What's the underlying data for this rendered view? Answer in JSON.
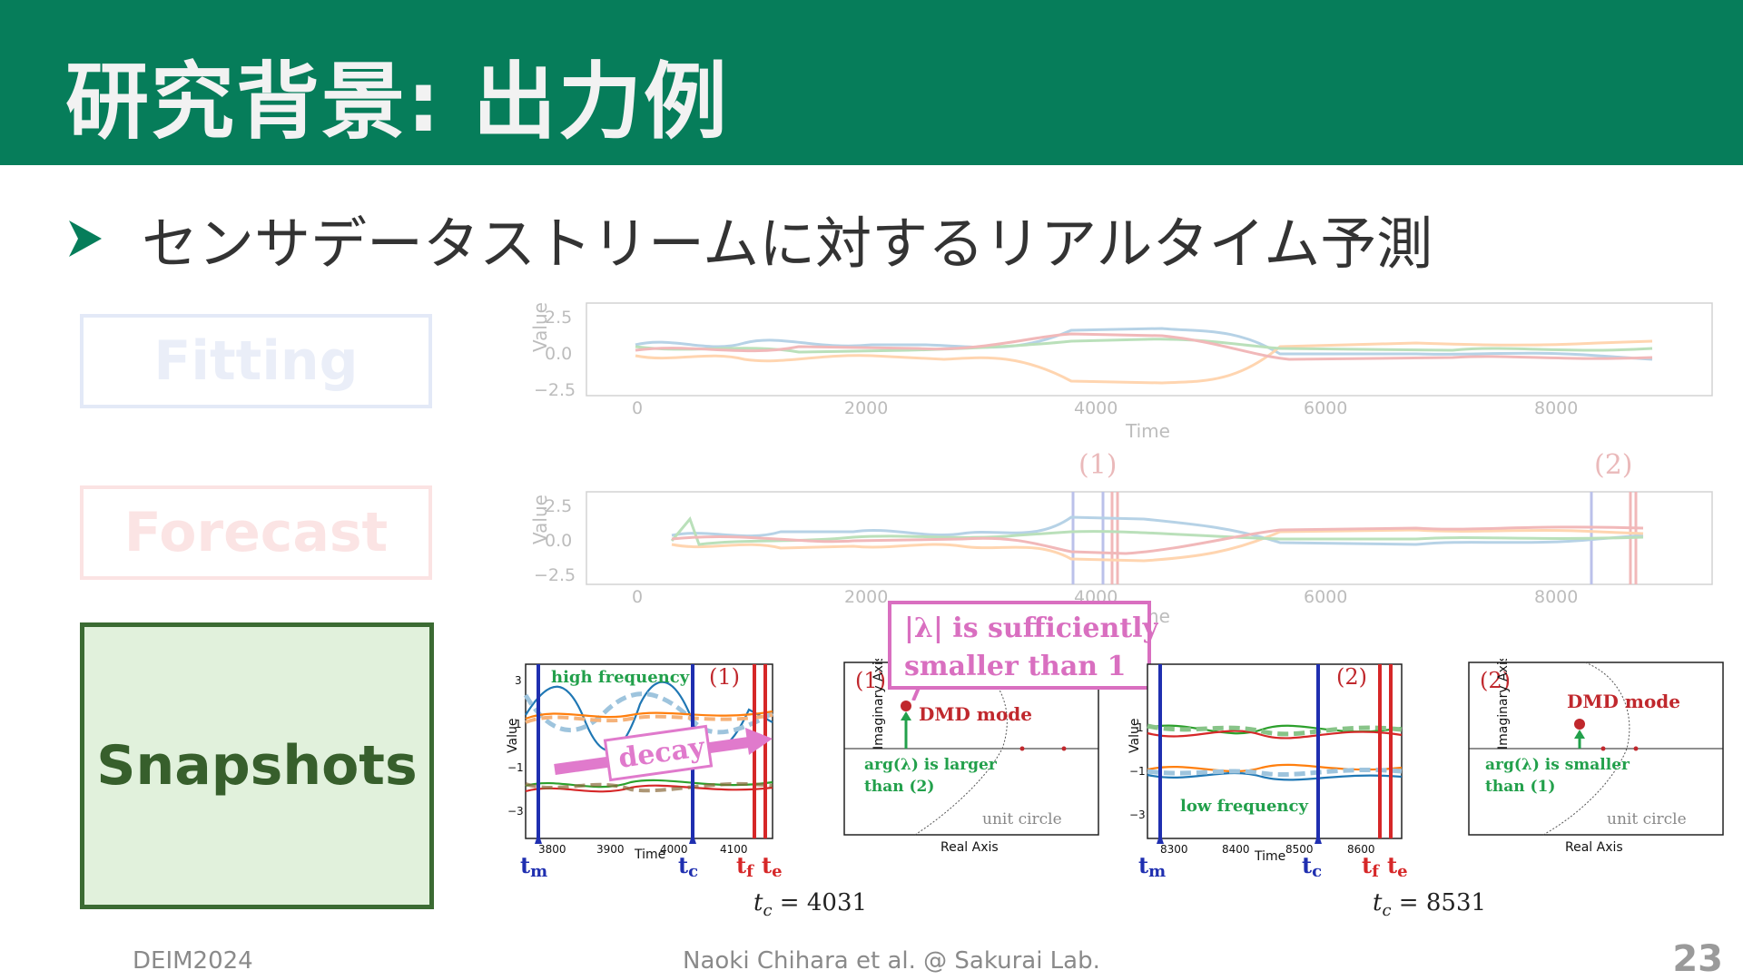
{
  "title": "研究背景: 出力例",
  "bullet": "センサデータストリームに対するリアルタイム予測",
  "boxes": {
    "fitting": "Fitting",
    "forecast": "Forecast",
    "snapshots": "Snapshots"
  },
  "top_chart": {
    "ylabel": "Value",
    "xlabel": "Time",
    "yticks": [
      "2.5",
      "0.0",
      "−2.5"
    ],
    "xticks": [
      "0",
      "2000",
      "4000",
      "6000",
      "8000"
    ]
  },
  "mid_chart": {
    "ylabel": "Value",
    "xlabel": "Time",
    "yticks": [
      "2.5",
      "0.0",
      "−2.5"
    ],
    "xticks": [
      "0",
      "2000",
      "4000",
      "6000",
      "8000"
    ],
    "marker1": "(1)",
    "marker2": "(2)"
  },
  "snap1": {
    "label": "(1)",
    "ylabel": "Value",
    "xlabel": "Time",
    "yticks": [
      "3",
      "1",
      "−1",
      "−3"
    ],
    "xticks": [
      "3800",
      "3900",
      "4000",
      "4100"
    ],
    "high_freq": "high frequency",
    "decay": "decay",
    "t_m": "t",
    "t_m_sub": "m",
    "t_c": "t",
    "t_c_sub": "c",
    "t_f": "t",
    "t_f_sub": "f",
    "t_e": "t",
    "t_e_sub": "e"
  },
  "eig1": {
    "label": "(1)",
    "ylabel": "Imaginary Axis",
    "xlabel": "Real Axis",
    "dmd": "DMD mode",
    "arg1": "arg(λ) is larger",
    "arg2": "than (2)",
    "unit_circle": "unit circle"
  },
  "callout": {
    "line1": "|λ| is sufficiently",
    "line2": "smaller than 1"
  },
  "snap2": {
    "label": "(2)",
    "ylabel": "Value",
    "xlabel": "Time",
    "yticks": [
      "1",
      "−1",
      "−3"
    ],
    "xticks": [
      "8300",
      "8400",
      "8500",
      "8600"
    ],
    "low_freq": "low frequency",
    "t_m": "t",
    "t_m_sub": "m",
    "t_c": "t",
    "t_c_sub": "c",
    "t_f": "t",
    "t_f_sub": "f",
    "t_e": "t",
    "t_e_sub": "e"
  },
  "eig2": {
    "label": "(2)",
    "ylabel": "Imaginary Axis",
    "xlabel": "Real Axis",
    "dmd": "DMD mode",
    "arg1": "arg(λ) is smaller",
    "arg2": "than (1)",
    "unit_circle": "unit circle"
  },
  "captions": {
    "c1": "t",
    "c1_sub": "c",
    "c1_val": " = 4031",
    "c2": "t",
    "c2_sub": "c",
    "c2_val": " = 8531"
  },
  "footer": {
    "left": "DEIM2024",
    "center": "Naoki Chihara et al. @ Sakurai Lab.",
    "page": "23"
  },
  "colors": {
    "header": "#067d5a",
    "snapshot_border": "#3b6b33",
    "snapshot_fill": "#e1f1dc",
    "callout": "#d96fc0",
    "dmd": "#c0282d",
    "green_text": "#22a04b"
  }
}
